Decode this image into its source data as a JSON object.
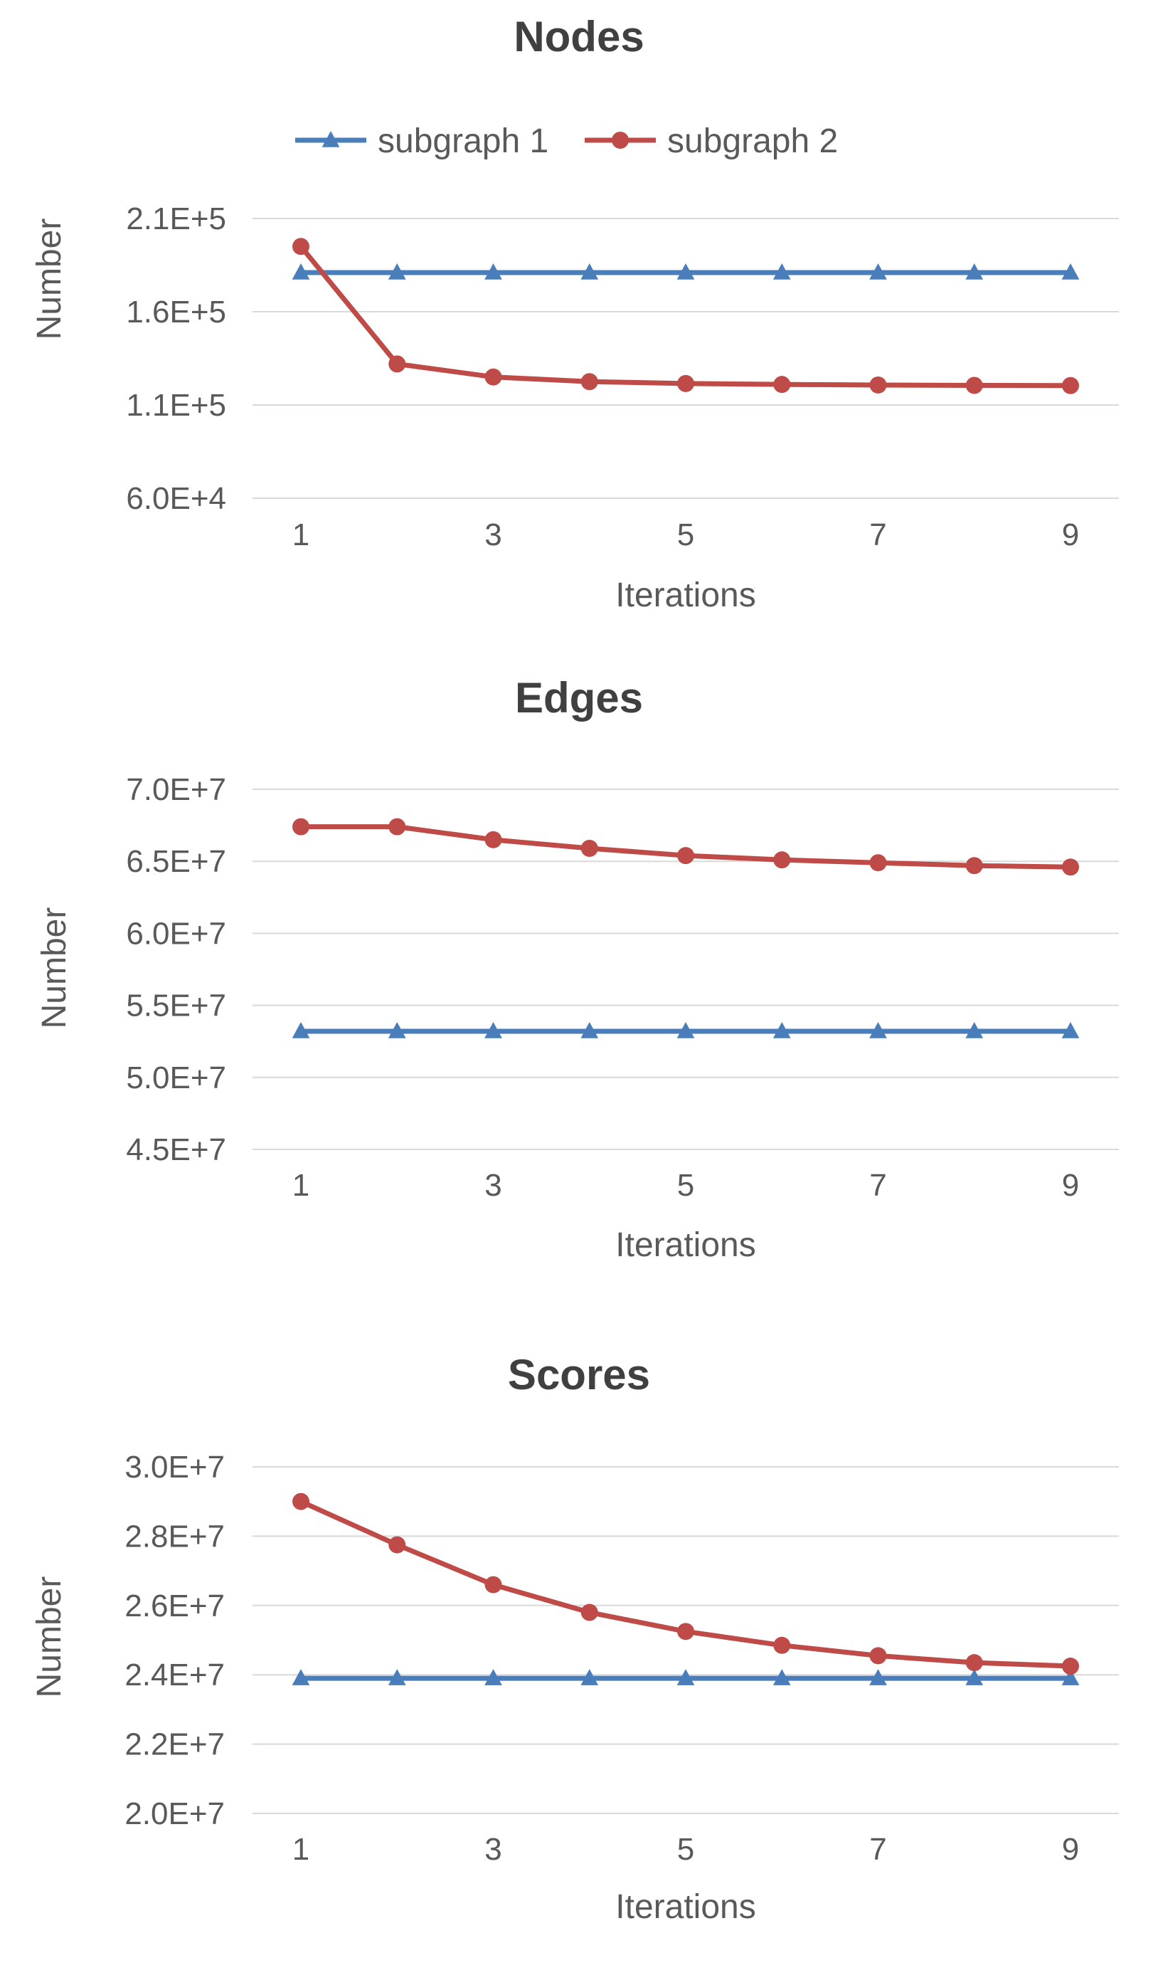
{
  "colors": {
    "subgraph_1": "#4a7ebb",
    "subgraph_2": "#be4b48"
  },
  "legend": [
    {
      "name": "subgraph 1",
      "color": "#4a7ebb",
      "marker": "triangle"
    },
    {
      "name": "subgraph 2",
      "color": "#be4b48",
      "marker": "circle"
    }
  ],
  "chart_data": [
    {
      "type": "line",
      "title": "Nodes",
      "xlabel": "Iterations",
      "ylabel": "Number",
      "x": [
        1,
        2,
        3,
        4,
        5,
        6,
        7,
        8,
        9
      ],
      "x_ticks": [
        "1",
        "3",
        "5",
        "7",
        "9"
      ],
      "y_ticks": [
        "2.1E+5",
        "1.6E+5",
        "1.1E+5",
        "6.0E+4"
      ],
      "ylim": [
        60000,
        210000
      ],
      "grid": true,
      "legend_position": "top",
      "series": [
        {
          "name": "subgraph 1",
          "marker": "triangle",
          "values": [
            181000,
            181000,
            181000,
            181000,
            181000,
            181000,
            181000,
            181000,
            181000
          ]
        },
        {
          "name": "subgraph 2",
          "marker": "circle",
          "values": [
            195000,
            132000,
            125000,
            122500,
            121500,
            121000,
            120700,
            120500,
            120400
          ]
        }
      ]
    },
    {
      "type": "line",
      "title": "Edges",
      "xlabel": "Iterations",
      "ylabel": "Number",
      "x": [
        1,
        2,
        3,
        4,
        5,
        6,
        7,
        8,
        9
      ],
      "x_ticks": [
        "1",
        "3",
        "5",
        "7",
        "9"
      ],
      "y_ticks": [
        "7.0E+7",
        "6.5E+7",
        "6.0E+7",
        "5.5E+7",
        "5.0E+7",
        "4.5E+7"
      ],
      "ylim": [
        45000000,
        70000000
      ],
      "grid": true,
      "series": [
        {
          "name": "subgraph 1",
          "marker": "triangle",
          "values": [
            53200000,
            53200000,
            53200000,
            53200000,
            53200000,
            53200000,
            53200000,
            53200000,
            53200000
          ]
        },
        {
          "name": "subgraph 2",
          "marker": "circle",
          "values": [
            67400000,
            67400000,
            66500000,
            65900000,
            65400000,
            65100000,
            64900000,
            64700000,
            64600000
          ]
        }
      ]
    },
    {
      "type": "line",
      "title": "Scores",
      "xlabel": "Iterations",
      "ylabel": "Number",
      "x": [
        1,
        2,
        3,
        4,
        5,
        6,
        7,
        8,
        9
      ],
      "x_ticks": [
        "1",
        "3",
        "5",
        "7",
        "9"
      ],
      "y_ticks": [
        "3.0E+7",
        "2.8E+7",
        "2.6E+7",
        "2.4E+7",
        "2.2E+7",
        "2.0E+7"
      ],
      "ylim": [
        20000000,
        30000000
      ],
      "grid": true,
      "series": [
        {
          "name": "subgraph 1",
          "marker": "triangle",
          "values": [
            23900000,
            23900000,
            23900000,
            23900000,
            23900000,
            23900000,
            23900000,
            23900000,
            23900000
          ]
        },
        {
          "name": "subgraph 2",
          "marker": "circle",
          "values": [
            29000000,
            27750000,
            26600000,
            25800000,
            25250000,
            24850000,
            24550000,
            24350000,
            24250000
          ]
        }
      ]
    }
  ]
}
